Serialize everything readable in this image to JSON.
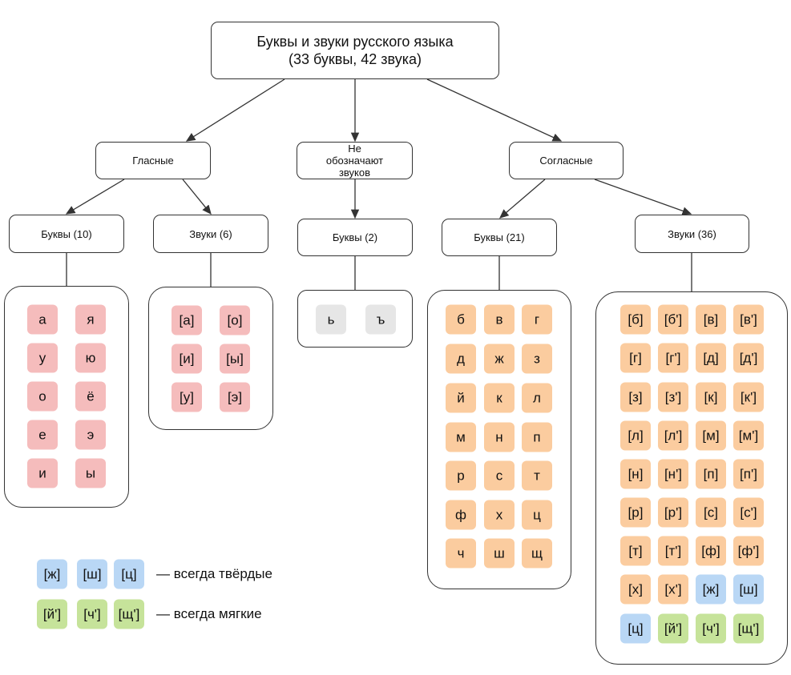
{
  "colors": {
    "vowel": "#f5bcbc",
    "consonant": "#fbcc9f",
    "hard": "#b9d7f5",
    "soft": "#c6e39a",
    "none": "#e6e6e6"
  },
  "root": {
    "title": "Буквы и звуки русского языка",
    "subtitle": "(33 буквы, 42 звука)"
  },
  "vowels": {
    "label": "Гласные",
    "letters_label": "Буквы (10)",
    "sounds_label": "Звуки (6)",
    "letters": [
      "а",
      "я",
      "у",
      "ю",
      "о",
      "ё",
      "е",
      "э",
      "и",
      "ы"
    ],
    "sounds": [
      "[а]",
      "[о]",
      "[и]",
      "[ы]",
      "[у]",
      "[э]"
    ]
  },
  "silent": {
    "label": "Не обозначают звуков",
    "letters_label": "Буквы (2)",
    "letters": [
      "ь",
      "ъ"
    ]
  },
  "consonants": {
    "label": "Согласные",
    "letters_label": "Буквы (21)",
    "sounds_label": "Звуки (36)",
    "letters": [
      "б",
      "в",
      "г",
      "д",
      "ж",
      "з",
      "й",
      "к",
      "л",
      "м",
      "н",
      "п",
      "р",
      "с",
      "т",
      "ф",
      "х",
      "ц",
      "ч",
      "ш",
      "щ"
    ],
    "sounds": [
      {
        "t": "[б]",
        "k": "consonant"
      },
      {
        "t": "[б']",
        "k": "consonant"
      },
      {
        "t": "[в]",
        "k": "consonant"
      },
      {
        "t": "[в']",
        "k": "consonant"
      },
      {
        "t": "[г]",
        "k": "consonant"
      },
      {
        "t": "[г']",
        "k": "consonant"
      },
      {
        "t": "[д]",
        "k": "consonant"
      },
      {
        "t": "[д']",
        "k": "consonant"
      },
      {
        "t": "[з]",
        "k": "consonant"
      },
      {
        "t": "[з']",
        "k": "consonant"
      },
      {
        "t": "[к]",
        "k": "consonant"
      },
      {
        "t": "[к']",
        "k": "consonant"
      },
      {
        "t": "[л]",
        "k": "consonant"
      },
      {
        "t": "[л']",
        "k": "consonant"
      },
      {
        "t": "[м]",
        "k": "consonant"
      },
      {
        "t": "[м']",
        "k": "consonant"
      },
      {
        "t": "[н]",
        "k": "consonant"
      },
      {
        "t": "[н']",
        "k": "consonant"
      },
      {
        "t": "[п]",
        "k": "consonant"
      },
      {
        "t": "[п']",
        "k": "consonant"
      },
      {
        "t": "[р]",
        "k": "consonant"
      },
      {
        "t": "[р']",
        "k": "consonant"
      },
      {
        "t": "[с]",
        "k": "consonant"
      },
      {
        "t": "[с']",
        "k": "consonant"
      },
      {
        "t": "[т]",
        "k": "consonant"
      },
      {
        "t": "[т']",
        "k": "consonant"
      },
      {
        "t": "[ф]",
        "k": "consonant"
      },
      {
        "t": "[ф']",
        "k": "consonant"
      },
      {
        "t": "[х]",
        "k": "consonant"
      },
      {
        "t": "[х']",
        "k": "consonant"
      },
      {
        "t": "[ж]",
        "k": "hard"
      },
      {
        "t": "[ш]",
        "k": "hard"
      },
      {
        "t": "[ц]",
        "k": "hard"
      },
      {
        "t": "[й']",
        "k": "soft"
      },
      {
        "t": "[ч']",
        "k": "soft"
      },
      {
        "t": "[щ']",
        "k": "soft"
      }
    ]
  },
  "legend": {
    "hard": {
      "tiles": [
        "[ж]",
        "[ш]",
        "[ц]"
      ],
      "label": "— всегда твёрдые"
    },
    "soft": {
      "tiles": [
        "[й']",
        "[ч']",
        "[щ']"
      ],
      "label": "— всегда мягкие"
    }
  }
}
